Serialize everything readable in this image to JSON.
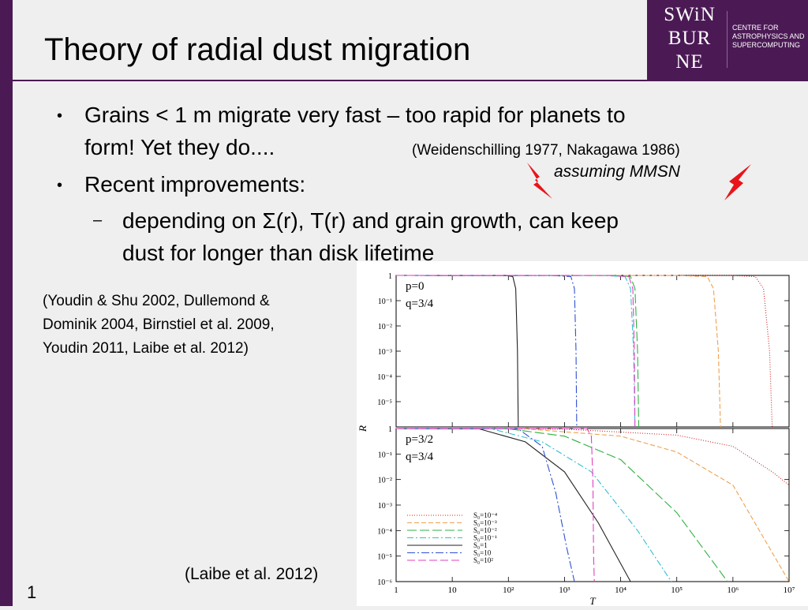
{
  "slide": {
    "title": "Theory of radial dust migration",
    "number": "1"
  },
  "logo": {
    "word_lines": [
      "SWiN",
      "BUR",
      "NE"
    ],
    "subtitle_lines": [
      "CENTRE FOR",
      "ASTROPHYSICS AND",
      "SUPERCOMPUTING"
    ]
  },
  "bullets": [
    {
      "line1": "Grains < 1 m migrate very fast – too rapid for planets to",
      "line2": "form!  Yet they do...."
    },
    {
      "line1": "Recent improvements:"
    }
  ],
  "sub_bullet": {
    "line1": "depending on Σ(r), T(r) and grain growth, can keep",
    "line2": "dust for longer than disk lifetime"
  },
  "refs": {
    "weidenschilling": "(Weidenschilling 1977, Nakagawa 1986)",
    "mmsn": "assuming MMSN",
    "recent_lines": [
      "(Youdin & Shu 2002, Dullemond &",
      "Dominik 2004, Birnstiel et al. 2009,",
      "Youdin 2011, Laibe et al. 2012)"
    ],
    "laibe": "(Laibe et al. 2012)"
  },
  "colors": {
    "brand_purple": "#4b1a55",
    "bolt_red": "#e8141a"
  },
  "chart_data": [
    {
      "type": "line",
      "panel": "top",
      "annotation": [
        "p=0",
        "q=3/4"
      ],
      "ylabel": "R",
      "y_log": true,
      "ylim": [
        1e-06,
        1
      ],
      "y_ticks": [
        "1",
        "10⁻¹",
        "10⁻²",
        "10⁻³",
        "10⁻⁴",
        "10⁻⁵"
      ],
      "x_log": true,
      "xlim": [
        1,
        10000000.0
      ],
      "series": [
        {
          "name": "S₀=10⁻⁴",
          "color": "#d42020",
          "dash": "1,2",
          "x": [
            1,
            1000000.0,
            2500000.0,
            3500000.0,
            4500000.0,
            5000000.0
          ],
          "y": [
            1,
            0.99,
            0.9,
            0.3,
            0.001,
            1e-06
          ]
        },
        {
          "name": "S₀=10⁻³",
          "color": "#f0a050",
          "dash": "6,3",
          "x": [
            1,
            100000.0,
            350000.0,
            450000.0,
            550000.0,
            600000.0
          ],
          "y": [
            1,
            0.99,
            0.9,
            0.3,
            0.001,
            1e-06
          ]
        },
        {
          "name": "S₀=10⁻²",
          "color": "#30b040",
          "dash": "12,4",
          "x": [
            1,
            7000,
            15000,
            18000,
            20000,
            21000
          ],
          "y": [
            1,
            0.99,
            0.9,
            0.3,
            0.001,
            1e-06
          ]
        },
        {
          "name": "S₀=10⁻¹",
          "color": "#30c0d0",
          "dash": "8,3,2,3",
          "x": [
            1,
            5000,
            12000,
            15000,
            17000,
            18000
          ],
          "y": [
            1,
            0.99,
            0.9,
            0.3,
            0.001,
            1e-06
          ]
        },
        {
          "name": "S₀=1",
          "color": "#222222",
          "dash": "",
          "x": [
            1,
            90,
            120,
            135,
            145,
            150
          ],
          "y": [
            1,
            0.99,
            0.9,
            0.3,
            0.001,
            1e-06
          ]
        },
        {
          "name": "S₀=10",
          "color": "#3050d0",
          "dash": "10,3,2,3",
          "x": [
            1,
            600,
            1300,
            1500,
            1600,
            1650
          ],
          "y": [
            1,
            0.99,
            0.9,
            0.3,
            0.001,
            1e-06
          ]
        },
        {
          "name": "S₀=10²",
          "color": "#e040c0",
          "dash": "10,4",
          "x": [
            1,
            6000,
            14000,
            16500,
            17500,
            18000
          ],
          "y": [
            1,
            0.99,
            0.9,
            0.3,
            0.001,
            1e-06
          ]
        }
      ]
    },
    {
      "type": "line",
      "panel": "bottom",
      "annotation": [
        "p=3/2",
        "q=3/4"
      ],
      "xlabel": "T",
      "ylabel": "",
      "y_log": true,
      "ylim": [
        1e-06,
        1
      ],
      "y_ticks": [
        "1",
        "10⁻¹",
        "10⁻²",
        "10⁻³",
        "10⁻⁴",
        "10⁻⁵",
        "10⁻⁶"
      ],
      "x_log": true,
      "xlim": [
        1,
        10000000.0
      ],
      "x_ticks": [
        "1",
        "10",
        "10²",
        "10³",
        "10⁴",
        "10⁵",
        "10⁶",
        "10⁷"
      ],
      "legend_position": "lower-left",
      "series": [
        {
          "name": "S₀=10⁻⁴",
          "color": "#d42020",
          "dash": "1,2",
          "x": [
            1,
            1000,
            100000.0,
            1000000.0,
            5000000.0,
            10000000.0
          ],
          "y": [
            1,
            0.95,
            0.55,
            0.2,
            0.02,
            0.006
          ]
        },
        {
          "name": "S₀=10⁻³",
          "color": "#f0a050",
          "dash": "6,3",
          "x": [
            1,
            200,
            10000.0,
            100000.0,
            1000000.0,
            10000000.0
          ],
          "y": [
            1,
            0.97,
            0.5,
            0.12,
            0.006,
            1e-06
          ]
        },
        {
          "name": "S₀=10⁻²",
          "color": "#30b040",
          "dash": "12,4",
          "x": [
            1,
            100,
            1000,
            10000.0,
            100000.0,
            800000.0
          ],
          "y": [
            1,
            0.97,
            0.5,
            0.06,
            0.0005,
            1e-06
          ]
        },
        {
          "name": "S₀=10⁻¹",
          "color": "#30c0d0",
          "dash": "8,3,2,3",
          "x": [
            1,
            50,
            400,
            3000,
            20000,
            80000
          ],
          "y": [
            1,
            0.97,
            0.3,
            0.02,
            0.0001,
            1e-06
          ]
        },
        {
          "name": "S₀=1",
          "color": "#222222",
          "dash": "",
          "x": [
            1,
            30,
            200,
            1000,
            4000,
            15000
          ],
          "y": [
            1,
            0.97,
            0.3,
            0.02,
            0.0002,
            1e-06
          ]
        },
        {
          "name": "S₀=10",
          "color": "#3050d0",
          "dash": "10,3,2,3",
          "x": [
            1,
            150,
            400,
            700,
            1100,
            1500
          ],
          "y": [
            1,
            0.97,
            0.2,
            0.003,
            2e-05,
            1e-06
          ]
        },
        {
          "name": "S₀=10²",
          "color": "#e040c0",
          "dash": "10,4",
          "x": [
            1,
            2500,
            3000,
            3200,
            3300,
            3400
          ],
          "y": [
            1,
            0.99,
            0.5,
            0.01,
            1e-05,
            1e-06
          ]
        }
      ]
    }
  ]
}
